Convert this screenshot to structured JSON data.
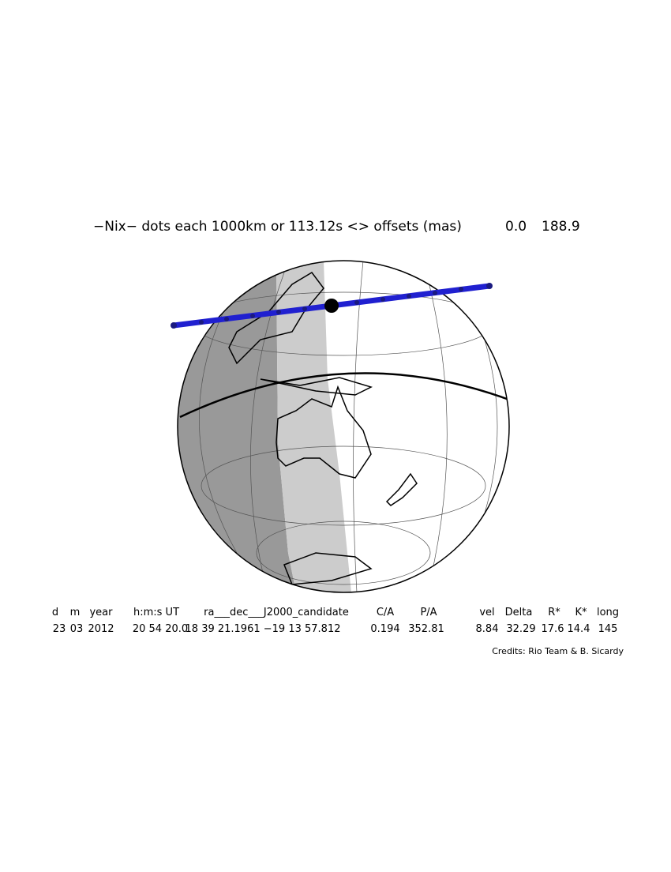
{
  "header": {
    "title": "−Nix− dots each 1000km or 113.12s <> offsets (mas)",
    "offset_ra": "0.0",
    "offset_dec": "188.9"
  },
  "table": {
    "columns": [
      "d",
      "m",
      "year",
      "h:m:s UT",
      "ra___dec___J2000_candidate",
      "C/A",
      "P/A",
      "vel",
      "Delta",
      "R*",
      "K*",
      "long"
    ],
    "rows": [
      [
        "23",
        "03",
        "2012",
        "20 54 20.0",
        "18 39 21.1961 −19 13 57.812",
        "0.194",
        "352.81",
        "8.84",
        "32.29",
        "17.6",
        "14.4",
        "145"
      ]
    ]
  },
  "footer": {
    "credits": "Credits: Rio Team & B. Sicardy"
  }
}
